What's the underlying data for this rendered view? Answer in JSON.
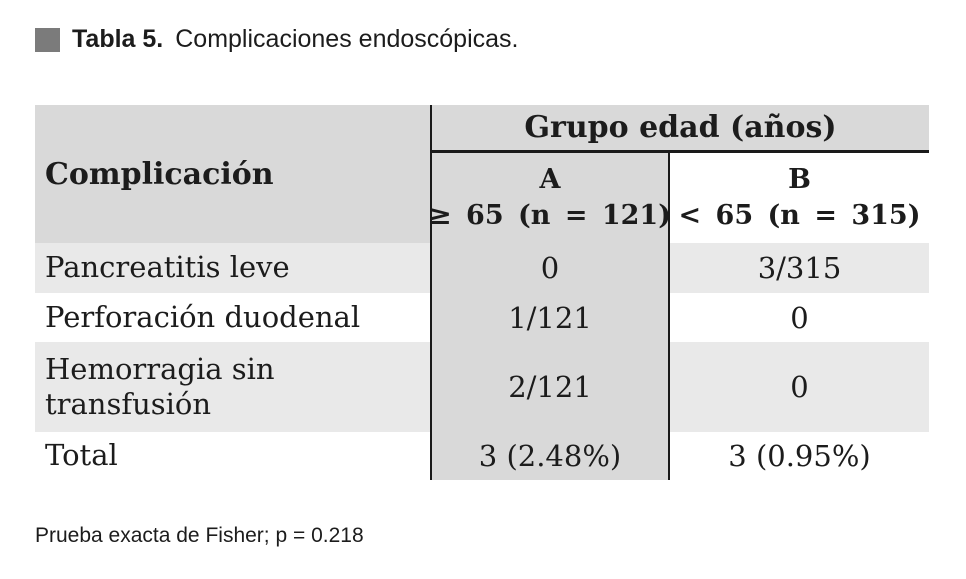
{
  "title": {
    "label": "Tabla 5.",
    "text": "Complicaciones endoscópicas."
  },
  "table": {
    "row_header": "Complicación",
    "group_header": "Grupo edad (años)",
    "columns": [
      {
        "name": "A",
        "subtitle": "≥ 65 (n = 121)"
      },
      {
        "name": "B",
        "subtitle": "< 65 (n = 315)"
      }
    ],
    "rows": [
      {
        "label": "Pancreatitis leve",
        "a": "0",
        "b": "3/315"
      },
      {
        "label": "Perforación duodenal",
        "a": "1/121",
        "b": "0"
      },
      {
        "label": "Hemorragia sin transfusión",
        "a": "2/121",
        "b": "0"
      },
      {
        "label": "Total",
        "a": "3 (2.48%)",
        "b": "3 (0.95%)"
      }
    ]
  },
  "footnote": "Prueba exacta de Fisher; p = 0.218",
  "colors": {
    "header_gray": "#d9d9d9",
    "stripe_gray": "#e9e9e9",
    "line": "#1a1a1a",
    "bullet": "#7b7b7b",
    "ink": "#1c1c1c"
  }
}
